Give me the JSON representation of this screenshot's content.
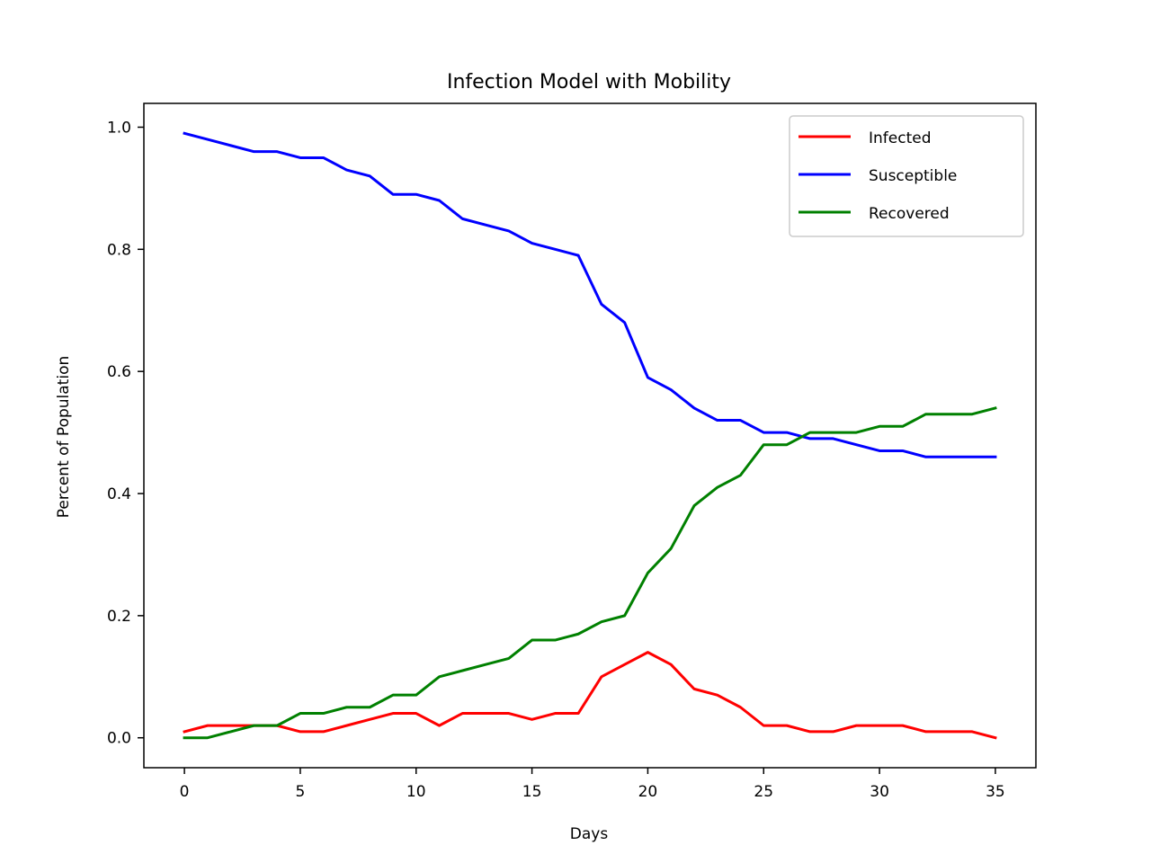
{
  "chart_data": {
    "type": "line",
    "title": "Infection Model with Mobility",
    "xlabel": "Days",
    "ylabel": "Percent of Population",
    "xlim": [
      -1.75,
      36.75
    ],
    "ylim": [
      -0.049,
      1.039
    ],
    "xticks": [
      0,
      5,
      10,
      15,
      20,
      25,
      30,
      35
    ],
    "yticks": [
      0.0,
      0.2,
      0.4,
      0.6,
      0.8,
      1.0
    ],
    "xtick_labels": [
      "0",
      "5",
      "10",
      "15",
      "20",
      "25",
      "30",
      "35"
    ],
    "ytick_labels": [
      "0.0",
      "0.2",
      "0.4",
      "0.6",
      "0.8",
      "1.0"
    ],
    "grid": false,
    "legend_position": "top-right",
    "x": [
      0,
      1,
      2,
      3,
      4,
      5,
      6,
      7,
      8,
      9,
      10,
      11,
      12,
      13,
      14,
      15,
      16,
      17,
      18,
      19,
      20,
      21,
      22,
      23,
      24,
      25,
      26,
      27,
      28,
      29,
      30,
      31,
      32,
      33,
      34,
      35
    ],
    "series": [
      {
        "name": "Infected",
        "color": "#ff0000",
        "values": [
          0.01,
          0.02,
          0.02,
          0.02,
          0.02,
          0.01,
          0.01,
          0.02,
          0.03,
          0.04,
          0.04,
          0.02,
          0.04,
          0.04,
          0.04,
          0.03,
          0.04,
          0.04,
          0.1,
          0.12,
          0.14,
          0.12,
          0.08,
          0.07,
          0.05,
          0.02,
          0.02,
          0.01,
          0.01,
          0.02,
          0.02,
          0.02,
          0.01,
          0.01,
          0.01,
          0.0
        ]
      },
      {
        "name": "Susceptible",
        "color": "#0000ff",
        "values": [
          0.99,
          0.98,
          0.97,
          0.96,
          0.96,
          0.95,
          0.95,
          0.93,
          0.92,
          0.89,
          0.89,
          0.88,
          0.85,
          0.84,
          0.83,
          0.81,
          0.8,
          0.79,
          0.71,
          0.68,
          0.59,
          0.57,
          0.54,
          0.52,
          0.52,
          0.5,
          0.5,
          0.49,
          0.49,
          0.48,
          0.47,
          0.47,
          0.46,
          0.46,
          0.46,
          0.46
        ]
      },
      {
        "name": "Recovered",
        "color": "#008000",
        "values": [
          0.0,
          0.0,
          0.01,
          0.02,
          0.02,
          0.04,
          0.04,
          0.05,
          0.05,
          0.07,
          0.07,
          0.1,
          0.11,
          0.12,
          0.13,
          0.16,
          0.16,
          0.17,
          0.19,
          0.2,
          0.27,
          0.31,
          0.38,
          0.41,
          0.43,
          0.48,
          0.48,
          0.5,
          0.5,
          0.5,
          0.51,
          0.51,
          0.53,
          0.53,
          0.53,
          0.54
        ]
      }
    ]
  }
}
